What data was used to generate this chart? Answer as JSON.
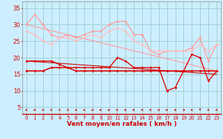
{
  "x": [
    0,
    1,
    2,
    3,
    4,
    5,
    6,
    7,
    8,
    9,
    10,
    11,
    12,
    13,
    14,
    15,
    16,
    17,
    18,
    19,
    20,
    21,
    22,
    23
  ],
  "rafales_upper": [
    30,
    33,
    30,
    27,
    26,
    27,
    26,
    27,
    28,
    28,
    30,
    31,
    31,
    27,
    27,
    22,
    21,
    22,
    22,
    22,
    23,
    26,
    19,
    24
  ],
  "rafales_lower": [
    28,
    27,
    25,
    24,
    26,
    26,
    25,
    26,
    27,
    26,
    28,
    29,
    28,
    25,
    24,
    22,
    22,
    22,
    22,
    22,
    22,
    24,
    22,
    24
  ],
  "vent_upper": [
    19,
    19,
    19,
    19,
    18,
    17,
    17,
    17,
    17,
    17,
    17,
    20,
    19,
    17,
    17,
    17,
    17,
    10,
    11,
    16,
    21,
    20,
    13,
    16
  ],
  "vent_lower": [
    16,
    16,
    16,
    17,
    17,
    17,
    16,
    16,
    16,
    16,
    16,
    16,
    16,
    16,
    16,
    16,
    16,
    16,
    16,
    16,
    16,
    16,
    16,
    16
  ],
  "trend_rafales": [
    30,
    16
  ],
  "trend_vent": [
    19,
    15
  ],
  "trend_x": [
    0,
    23
  ],
  "bg_color": "#cceeff",
  "grid_color": "#99cccc",
  "color_light1": "#ff9999",
  "color_light2": "#ffbbbb",
  "color_dark1": "#dd0000",
  "color_dark2": "#cc0000",
  "xlabel": "Vent moyen/en rafales ( km/h )",
  "xlabel_color": "#cc0000",
  "tick_color": "#cc0000",
  "yticks": [
    5,
    10,
    15,
    20,
    25,
    30,
    35
  ],
  "ylim": [
    3,
    37
  ],
  "xlim": [
    -0.5,
    23.5
  ],
  "arrow_angles": [
    225,
    225,
    225,
    225,
    225,
    225,
    225,
    225,
    225,
    270,
    270,
    270,
    270,
    270,
    315,
    315,
    315,
    270,
    315,
    90,
    315,
    180,
    135,
    225
  ]
}
